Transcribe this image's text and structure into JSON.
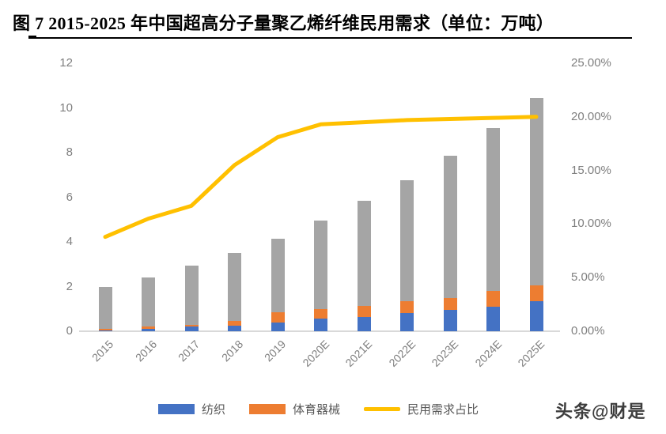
{
  "figure": {
    "title": "图 7 2015-2025 年中国超高分子量聚乙烯纤维民用需求（单位：万吨）",
    "watermark": "头条@财是"
  },
  "chart_data": {
    "type": "bar",
    "subtype": "stacked-bars-with-line-combo",
    "title": "图 7 2015-2025 年中国超高分子量聚乙烯纤维民用需求（单位：万吨）",
    "categories": [
      "2015",
      "2016",
      "2017",
      "2018",
      "2019",
      "2020E",
      "2021E",
      "2022E",
      "2023E",
      "2024E",
      "2025E"
    ],
    "series": [
      {
        "name": "纺织",
        "type": "bar",
        "axis": "left",
        "color": "#4472C4",
        "values": [
          0.05,
          0.1,
          0.2,
          0.25,
          0.4,
          0.55,
          0.65,
          0.8,
          0.95,
          1.1,
          1.35
        ]
      },
      {
        "name": "体育器械",
        "type": "bar",
        "axis": "left",
        "color": "#ED7D31",
        "values": [
          0.05,
          0.1,
          0.1,
          0.2,
          0.45,
          0.45,
          0.5,
          0.55,
          0.55,
          0.7,
          0.7
        ]
      },
      {
        "name": "",
        "type": "bar",
        "axis": "left",
        "color": "#A5A5A5",
        "values": [
          1.9,
          2.2,
          2.65,
          3.05,
          3.3,
          3.95,
          4.7,
          5.4,
          6.35,
          7.3,
          8.4
        ]
      },
      {
        "name": "民用需求占比",
        "type": "line",
        "axis": "right",
        "color": "#FFC000",
        "values": [
          8.8,
          10.5,
          11.7,
          15.5,
          18.1,
          19.3,
          19.5,
          19.7,
          19.8,
          19.9,
          20.0
        ]
      }
    ],
    "bar_totals": [
      2.0,
      2.4,
      2.95,
      3.5,
      4.15,
      4.95,
      5.85,
      6.75,
      7.85,
      9.1,
      10.45
    ],
    "stacked": true,
    "grid": false,
    "left_axis": {
      "min": 0,
      "max": 12,
      "ticks": [
        "0",
        "2",
        "4",
        "6",
        "8",
        "10",
        "12"
      ]
    },
    "right_axis": {
      "min": 0,
      "max": 25,
      "ticks": [
        "0.00%",
        "5.00%",
        "10.00%",
        "15.00%",
        "20.00%",
        "25.00%"
      ],
      "tick_values": [
        0,
        5,
        10,
        15,
        20,
        25
      ]
    },
    "legend_position": "bottom",
    "legend": [
      {
        "label": "纺织",
        "color": "#4472C4",
        "swatch": "bar"
      },
      {
        "label": "体育器械",
        "color": "#ED7D31",
        "swatch": "bar"
      },
      {
        "label": "民用需求占比",
        "color": "#FFC000",
        "swatch": "line"
      }
    ]
  },
  "colors": {
    "textile_blue": "#4472C4",
    "sports_orange": "#ED7D31",
    "unlabeled_gray": "#A5A5A5",
    "line_yellow": "#FFC000",
    "axis_text": "#7F7F7F",
    "axis_line": "#D9D9D9"
  }
}
